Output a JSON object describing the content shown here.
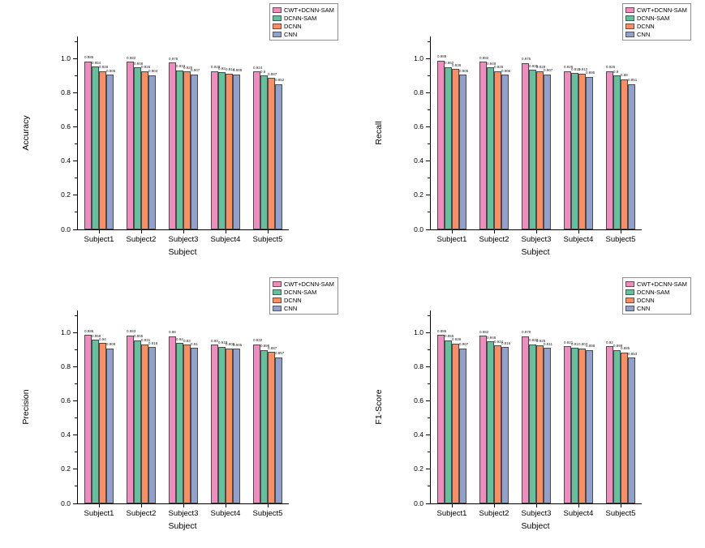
{
  "figure": {
    "background": "#ffffff",
    "legend_labels": [
      "CWT+DCNN-SAM",
      "DCNN-SAM",
      "DCNN",
      "CNN"
    ],
    "palette": {
      "cwt_dcnn_sam": "#F18DBE",
      "dcnn_sam": "#64C19E",
      "dcnn": "#FA8D61",
      "cnn": "#90A1CD",
      "bar_border": "#4a4a4a",
      "axis": "#000000"
    }
  },
  "chart_data": [
    {
      "type": "bar",
      "title": "",
      "ylabel": "Accuracy",
      "xlabel": "Subject",
      "categories": [
        "Subject1",
        "Subject2",
        "Subject3",
        "Subject4",
        "Subject5"
      ],
      "ylim": [
        0,
        1.13
      ],
      "yticks": [
        0.0,
        0.2,
        0.4,
        0.6,
        0.8,
        1.0
      ],
      "grid": false,
      "legend_position": "top-right",
      "series": [
        {
          "name": "CWT+DCNN-SAM",
          "color": "#F18DBE",
          "values": [
            0.985,
            0.982,
            0.978,
            0.928,
            0.924
          ]
        },
        {
          "name": "DCNN-SAM",
          "color": "#64C19E",
          "values": [
            0.954,
            0.948,
            0.933,
            0.92,
            0.9
          ]
        },
        {
          "name": "DCNN",
          "color": "#FA8D61",
          "values": [
            0.928,
            0.926,
            0.925,
            0.914,
            0.887
          ]
        },
        {
          "name": "CNN",
          "color": "#90A1CD",
          "values": [
            0.905,
            0.904,
            0.907,
            0.908,
            0.852
          ]
        }
      ]
    },
    {
      "type": "bar",
      "title": "",
      "ylabel": "Recall",
      "xlabel": "Subject",
      "categories": [
        "Subject1",
        "Subject2",
        "Subject3",
        "Subject4",
        "Subject5"
      ],
      "ylim": [
        0,
        1.13
      ],
      "yticks": [
        0.0,
        0.2,
        0.4,
        0.6,
        0.8,
        1.0
      ],
      "grid": false,
      "legend_position": "top-right",
      "series": [
        {
          "name": "CWT+DCNN-SAM",
          "color": "#F18DBE",
          "values": [
            0.988,
            0.982,
            0.975,
            0.926,
            0.926
          ]
        },
        {
          "name": "DCNN-SAM",
          "color": "#64C19E",
          "values": [
            0.952,
            0.948,
            0.935,
            0.915,
            0.9
          ]
        },
        {
          "name": "DCNN",
          "color": "#FA8D61",
          "values": [
            0.938,
            0.926,
            0.928,
            0.912,
            0.88
          ]
        },
        {
          "name": "CNN",
          "color": "#90A1CD",
          "values": [
            0.905,
            0.906,
            0.907,
            0.895,
            0.851
          ]
        }
      ]
    },
    {
      "type": "bar",
      "title": "",
      "ylabel": "Precision",
      "xlabel": "Subject",
      "categories": [
        "Subject1",
        "Subject2",
        "Subject3",
        "Subject4",
        "Subject5"
      ],
      "ylim": [
        0,
        1.13
      ],
      "yticks": [
        0.0,
        0.2,
        0.4,
        0.6,
        0.8,
        1.0
      ],
      "grid": false,
      "legend_position": "top-right",
      "series": [
        {
          "name": "CWT+DCNN-SAM",
          "color": "#F18DBE",
          "values": [
            0.986,
            0.983,
            0.98,
            0.93,
            0.932
          ]
        },
        {
          "name": "DCNN-SAM",
          "color": "#64C19E",
          "values": [
            0.958,
            0.955,
            0.94,
            0.918,
            0.898
          ]
        },
        {
          "name": "DCNN",
          "color": "#FA8D61",
          "values": [
            0.94,
            0.931,
            0.93,
            0.909,
            0.887
          ]
        },
        {
          "name": "CNN",
          "color": "#90A1CD",
          "values": [
            0.908,
            0.916,
            0.91,
            0.905,
            0.857
          ]
        }
      ]
    },
    {
      "type": "bar",
      "title": "",
      "ylabel": "F1-Score",
      "xlabel": "Subject",
      "categories": [
        "Subject1",
        "Subject2",
        "Subject3",
        "Subject4",
        "Subject5"
      ],
      "ylim": [
        0,
        1.13
      ],
      "yticks": [
        0.0,
        0.2,
        0.4,
        0.6,
        0.8,
        1.0
      ],
      "grid": false,
      "legend_position": "top-right",
      "series": [
        {
          "name": "CWT+DCNN-SAM",
          "color": "#F18DBE",
          "values": [
            0.986,
            0.982,
            0.979,
            0.921,
            0.92
          ]
        },
        {
          "name": "DCNN-SAM",
          "color": "#64C19E",
          "values": [
            0.955,
            0.948,
            0.933,
            0.91,
            0.899
          ]
        },
        {
          "name": "DCNN",
          "color": "#FA8D61",
          "values": [
            0.936,
            0.924,
            0.926,
            0.907,
            0.885
          ]
        },
        {
          "name": "CNN",
          "color": "#90A1CD",
          "values": [
            0.907,
            0.916,
            0.911,
            0.898,
            0.853
          ]
        }
      ]
    }
  ]
}
